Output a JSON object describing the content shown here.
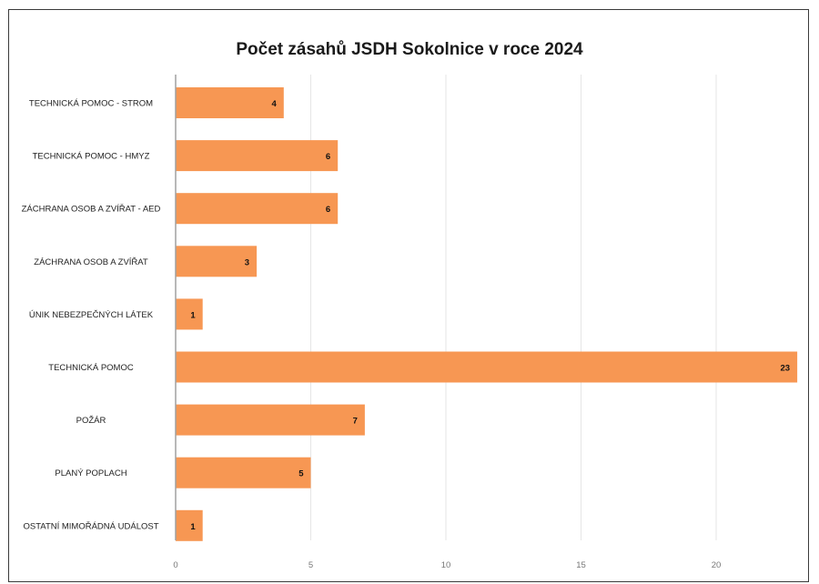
{
  "chart_data": {
    "type": "bar",
    "orientation": "horizontal",
    "title": "Počet zásahů JSDH Sokolnice v roce 2024",
    "categories": [
      "TECHNICKÁ POMOC - STROM",
      "TECHNICKÁ POMOC - HMYZ",
      "ZÁCHRANA OSOB A ZVÍŘAT - AED",
      "ZÁCHRANA OSOB A ZVÍŘAT",
      "ÚNIK NEBEZPEČNÝCH LÁTEK",
      "TECHNICKÁ POMOC",
      "POŽÁR",
      "PLANÝ POPLACH",
      "OSTATNÍ MIMOŘÁDNÁ UDÁLOST"
    ],
    "values": [
      4,
      6,
      6,
      3,
      1,
      23,
      7,
      5,
      1
    ],
    "xticks": [
      0,
      5,
      10,
      15,
      20
    ],
    "xlim": [
      0,
      23
    ],
    "bar_color": "#f79753",
    "grid": true,
    "data_labels": true
  }
}
